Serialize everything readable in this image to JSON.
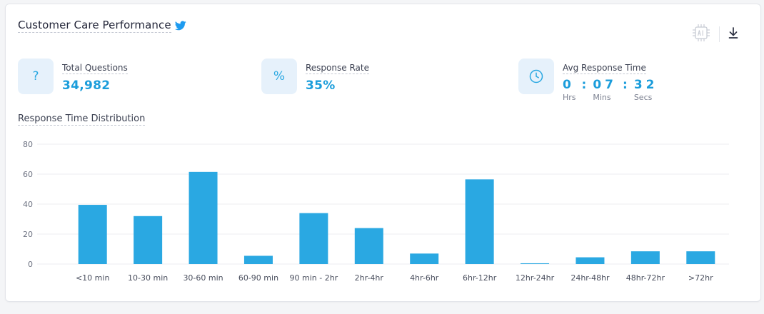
{
  "header": {
    "title": "Customer Care Performance",
    "title_icon": "twitter-icon",
    "toolbar": {
      "ai_icon": "ai-chip-icon",
      "download_icon": "download-icon"
    }
  },
  "stats": [
    {
      "label": "Total Questions",
      "value": "34,982",
      "icon": "question-mark-icon",
      "glyph": "?"
    },
    {
      "label": "Response Rate",
      "value": "35%",
      "icon": "percent-icon",
      "glyph": "%"
    },
    {
      "label": "Avg Response Time",
      "icon": "clock-icon",
      "time": {
        "hours": "0",
        "minutes": "07",
        "seconds": "32",
        "hours_label": "Hrs",
        "minutes_label": "Mins",
        "seconds_label": "Secs",
        "separator": ":"
      }
    }
  ],
  "section_label": "Response Time Distribution",
  "colors": {
    "accent": "#2aa8e2",
    "bar": "#2aa8e2",
    "grid": "#eceef2"
  },
  "chart_data": {
    "type": "bar",
    "categories": [
      "<10 min",
      "10-30 min",
      "30-60 min",
      "60-90 min",
      "90 min - 2hr",
      "2hr-4hr",
      "4hr-6hr",
      "6hr-12hr",
      "12hr-24hr",
      "24hr-48hr",
      "48hr-72hr",
      ">72hr"
    ],
    "values": [
      39.5,
      32,
      61.5,
      5.5,
      34,
      24,
      7,
      56.5,
      0.5,
      4.5,
      8.5,
      8.5
    ],
    "ylim": [
      0,
      80
    ],
    "yticks": [
      0,
      20,
      40,
      60,
      80
    ],
    "grid": true,
    "title": "",
    "xlabel": "",
    "ylabel": ""
  }
}
